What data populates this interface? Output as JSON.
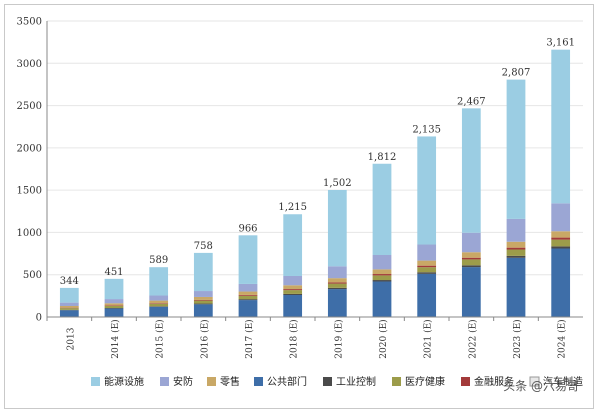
{
  "chart_data": {
    "type": "bar",
    "stacked": true,
    "categories": [
      "2013",
      "2014 (E)",
      "2015 (E)",
      "2016 (E)",
      "2017 (E)",
      "2018 (E)",
      "2019 (E)",
      "2020 (E)",
      "2021 (E)",
      "2022 (E)",
      "2023 (E)",
      "2024 (E)"
    ],
    "totals": [
      344,
      451,
      589,
      758,
      966,
      1215,
      1502,
      1812,
      2135,
      2467,
      2807,
      3161
    ],
    "total_labels": [
      "344",
      "451",
      "589",
      "758",
      "966",
      "1,215",
      "1,502",
      "1,812",
      "2,135",
      "2,467",
      "2,807",
      "3,161"
    ],
    "ylim": [
      0,
      3500
    ],
    "yticks": [
      "0",
      "500",
      "1000",
      "1500",
      "2000",
      "2500",
      "3000",
      "3500"
    ],
    "xlabel": "",
    "ylabel": "",
    "legend_position": "bottom",
    "series": [
      {
        "name": "公共部门",
        "color": "#3e6ea8",
        "values": [
          80,
          100,
          120,
          150,
          200,
          260,
          330,
          420,
          510,
          590,
          700,
          810
        ]
      },
      {
        "name": "工业控制",
        "color": "#4a4a4a",
        "values": [
          5,
          6,
          7,
          9,
          11,
          13,
          15,
          17,
          19,
          21,
          23,
          25
        ]
      },
      {
        "name": "医疗健康",
        "color": "#9c9c4a",
        "values": [
          20,
          25,
          30,
          35,
          40,
          45,
          50,
          55,
          60,
          70,
          75,
          80
        ]
      },
      {
        "name": "金融服务",
        "color": "#a33a3a",
        "values": [
          5,
          6,
          7,
          8,
          10,
          12,
          14,
          16,
          18,
          20,
          22,
          24
        ]
      },
      {
        "name": "零售",
        "color": "#c9a866",
        "values": [
          20,
          25,
          30,
          35,
          40,
          45,
          50,
          55,
          60,
          65,
          70,
          75
        ]
      },
      {
        "name": "安防",
        "color": "#9ba6d4",
        "values": [
          40,
          50,
          60,
          70,
          90,
          110,
          140,
          170,
          190,
          230,
          270,
          330
        ]
      },
      {
        "name": "能源设施",
        "color": "#9bcde3",
        "values": [
          174,
          239,
          335,
          451,
          575,
          730,
          903,
          1079,
          1278,
          1471,
          1647,
          1817
        ]
      }
    ],
    "legend": [
      "能源设施",
      "安防",
      "零售",
      "公共部门",
      "工业控制",
      "医疗健康",
      "金融服务",
      "汽车制造"
    ],
    "legend_colors": [
      "#9bcde3",
      "#9ba6d4",
      "#c9a866",
      "#3e6ea8",
      "#4a4a4a",
      "#9c9c4a",
      "#a33a3a",
      "#e8e8e8"
    ]
  },
  "watermark": "头条 @六易哥"
}
